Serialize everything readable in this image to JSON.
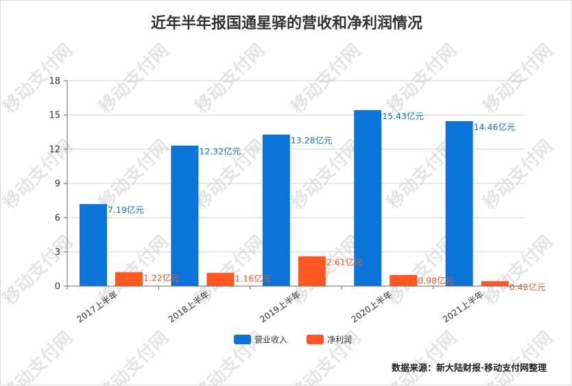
{
  "watermark": "移动支付网",
  "source": "数据来源：新大陆财报·移动支付网整理",
  "chart_data": {
    "type": "bar",
    "title": "近年半年报国通星驿的营收和净利润情况",
    "xlabel": "",
    "ylabel": "",
    "ylim": [
      0,
      18
    ],
    "yticks": [
      "0",
      "3",
      "6",
      "9",
      "12",
      "15",
      "18"
    ],
    "categories": [
      "2017上半年",
      "2018上半年",
      "2019上半年",
      "2020上半年",
      "2021上半年"
    ],
    "grid": true,
    "legend_position": "bottom-center",
    "series": [
      {
        "name": "营业收入",
        "color": "#0b74d9",
        "label_color": "#0b74d9",
        "values": [
          7.19,
          12.32,
          13.28,
          15.43,
          14.46
        ],
        "labels": [
          "7.19亿元",
          "12.32亿元",
          "13.28亿元",
          "15.43亿元",
          "14.46亿元"
        ]
      },
      {
        "name": "净利润",
        "color": "#ff5722",
        "label_color": "#f05a28",
        "values": [
          1.22,
          1.16,
          2.61,
          0.98,
          0.43
        ],
        "labels": [
          "1.22亿元",
          "1.16亿元",
          "2.61亿元",
          "0.98亿元",
          "0.43亿元"
        ]
      }
    ]
  }
}
